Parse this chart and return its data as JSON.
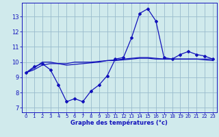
{
  "xlabel": "Graphe des températures (°c)",
  "bg_color": "#d0eaec",
  "line_color": "#1111bb",
  "grid_color": "#99bbcc",
  "x_ticks": [
    0,
    1,
    2,
    3,
    4,
    5,
    6,
    7,
    8,
    9,
    10,
    11,
    12,
    13,
    14,
    15,
    16,
    17,
    18,
    19,
    20,
    21,
    22,
    23
  ],
  "y_ticks": [
    7,
    8,
    9,
    10,
    11,
    12,
    13
  ],
  "ylim": [
    6.7,
    13.9
  ],
  "xlim": [
    -0.5,
    23.5
  ],
  "curve1_x": [
    0,
    1,
    2,
    3,
    4,
    5,
    6,
    7,
    8,
    9,
    10,
    11,
    12,
    13,
    14,
    15,
    16,
    17,
    18,
    19,
    20,
    21,
    22,
    23
  ],
  "curve1_y": [
    9.3,
    9.7,
    9.9,
    9.5,
    8.5,
    7.4,
    7.6,
    7.4,
    8.1,
    8.5,
    9.1,
    10.2,
    10.3,
    11.6,
    13.2,
    13.5,
    12.7,
    10.3,
    10.2,
    10.5,
    10.7,
    10.5,
    10.4,
    10.2
  ],
  "curve2_x": [
    0,
    1,
    2,
    3,
    4,
    5,
    6,
    7,
    8,
    9,
    10,
    11,
    12,
    13,
    14,
    15,
    16,
    17,
    18,
    19,
    20,
    21,
    22,
    23
  ],
  "curve2_y": [
    9.3,
    9.5,
    9.8,
    9.9,
    9.9,
    9.9,
    10.0,
    10.0,
    10.0,
    10.05,
    10.1,
    10.1,
    10.15,
    10.2,
    10.25,
    10.25,
    10.2,
    10.2,
    10.2,
    10.2,
    10.2,
    10.2,
    10.15,
    10.1
  ],
  "curve3_x": [
    0,
    1,
    2,
    3,
    4,
    5,
    6,
    7,
    8,
    9,
    10,
    11,
    12,
    13,
    14,
    15,
    16,
    17,
    18,
    19,
    20,
    21,
    22,
    23
  ],
  "curve3_y": [
    9.3,
    9.6,
    10.0,
    10.0,
    9.9,
    9.8,
    9.85,
    9.9,
    9.95,
    10.0,
    10.1,
    10.15,
    10.2,
    10.25,
    10.3,
    10.3,
    10.25,
    10.2,
    10.2,
    10.2,
    10.2,
    10.2,
    10.2,
    10.2
  ]
}
